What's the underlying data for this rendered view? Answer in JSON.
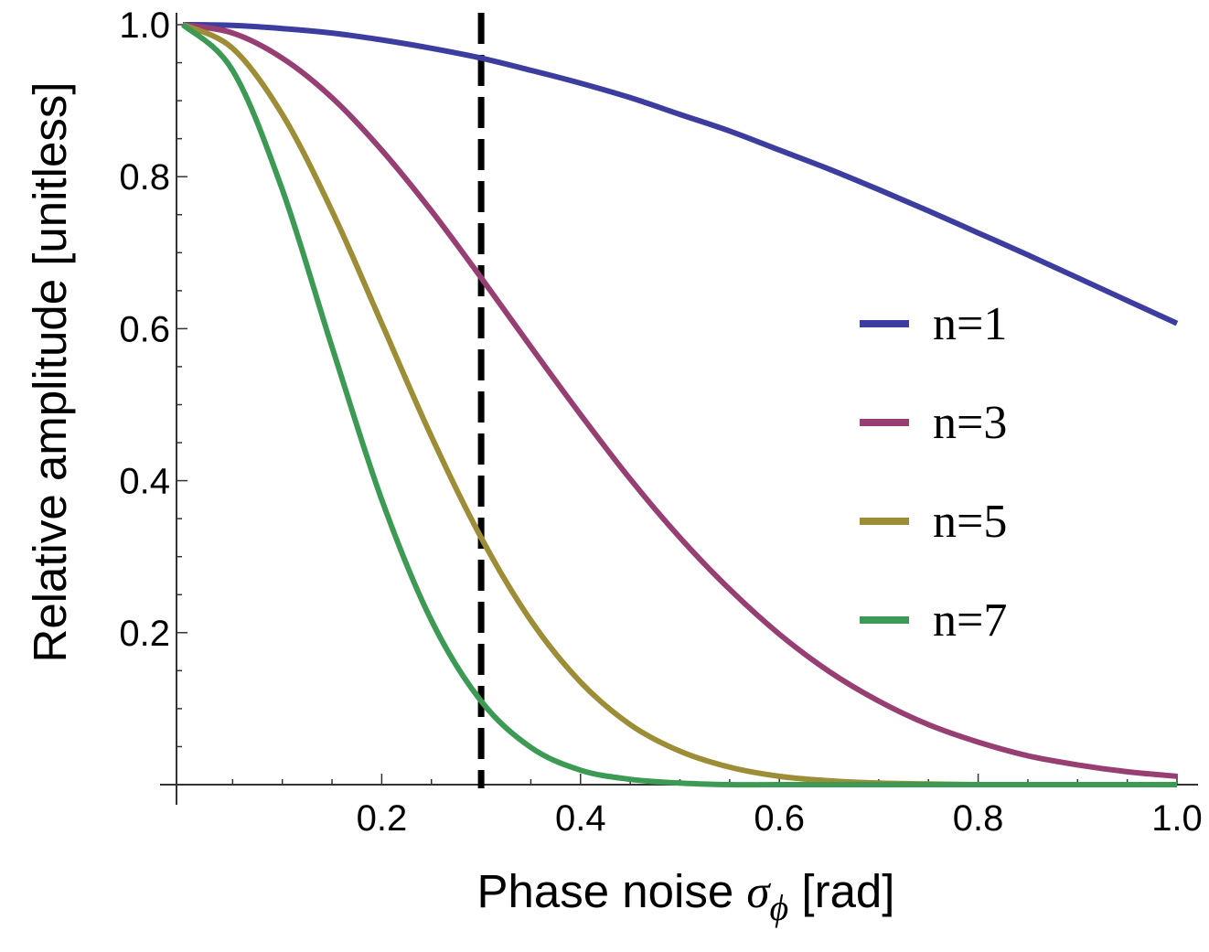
{
  "chart_data": {
    "type": "line",
    "xlabel": "Phase noise σ_φ  [rad]",
    "xlabel_parts": {
      "text": "Phase noise ",
      "symbol": "σ",
      "subscript": "ϕ",
      "unit": "  [rad]"
    },
    "ylabel": "Relative amplitude  [unitless]",
    "xlim": [
      0,
      1.0
    ],
    "ylim": [
      0,
      1.0
    ],
    "xticks": [
      "0.2",
      "0.4",
      "0.6",
      "0.8",
      "1.0"
    ],
    "yticks": [
      "0.2",
      "0.4",
      "0.6",
      "0.8",
      "1.0"
    ],
    "x": [
      0,
      0.05,
      0.1,
      0.15,
      0.2,
      0.25,
      0.3,
      0.35,
      0.4,
      0.45,
      0.5,
      0.55,
      0.6,
      0.65,
      0.7,
      0.75,
      0.8,
      0.85,
      0.9,
      0.95,
      1.0
    ],
    "series": [
      {
        "name": "n=1",
        "color": "#3d3d9f",
        "values": [
          1.0,
          0.999,
          0.995,
          0.989,
          0.98,
          0.969,
          0.956,
          0.94,
          0.923,
          0.904,
          0.882,
          0.86,
          0.835,
          0.81,
          0.783,
          0.755,
          0.726,
          0.697,
          0.667,
          0.637,
          0.607
        ]
      },
      {
        "name": "n=3",
        "color": "#973f73",
        "values": [
          1.0,
          0.989,
          0.956,
          0.904,
          0.835,
          0.755,
          0.667,
          0.576,
          0.487,
          0.402,
          0.325,
          0.257,
          0.198,
          0.149,
          0.11,
          0.079,
          0.056,
          0.038,
          0.026,
          0.017,
          0.011
        ]
      },
      {
        "name": "n=5",
        "color": "#9c8d36",
        "values": [
          1.0,
          0.969,
          0.882,
          0.755,
          0.607,
          0.458,
          0.325,
          0.216,
          0.135,
          0.079,
          0.044,
          0.023,
          0.011,
          0.005,
          0.002,
          0.001,
          0.0,
          0.0,
          0.0,
          0.0,
          0.0
        ]
      },
      {
        "name": "n=7",
        "color": "#3c9a55",
        "values": [
          1.0,
          0.94,
          0.783,
          0.576,
          0.375,
          0.216,
          0.11,
          0.049,
          0.019,
          0.007,
          0.002,
          0.0,
          0.0,
          0.0,
          0.0,
          0.0,
          0.0,
          0.0,
          0.0,
          0.0,
          0.0
        ]
      }
    ],
    "annotations": [
      {
        "type": "vertical-dashed-line",
        "x": 0.3,
        "color": "#000000"
      }
    ],
    "legend_position": "right",
    "grid": false
  }
}
